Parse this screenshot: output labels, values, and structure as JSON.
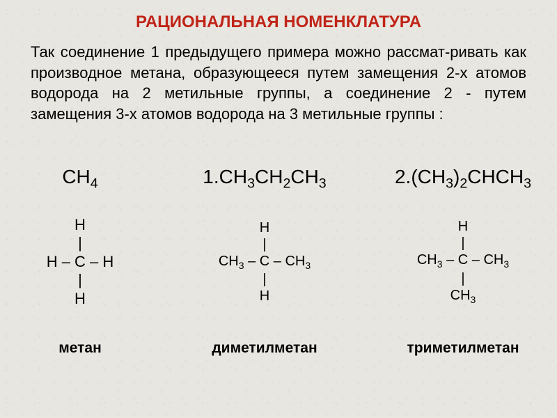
{
  "title": {
    "text": "РАЦИОНАЛЬНАЯ НОМЕНКЛАТУРА",
    "color": "#c02418",
    "fontsize": 24
  },
  "paragraph": {
    "text": "Так соединение 1 предыдущего примера можно рассмат-ривать как производное метана, образующееся путем замещения 2-х атомов водорода на 2 метильные группы, а соединение 2 - путем замещения 3-х атомов водорода на 3 метильные группы :",
    "fontsize": 22
  },
  "compounds": [
    {
      "formula_html": "CH<sub>4</sub>",
      "struct": {
        "fontsize": 22,
        "lines": [
          "H",
          "|",
          "H – C – H",
          "|",
          "H"
        ]
      },
      "name": "метан",
      "name_fontsize": 21
    },
    {
      "formula_html": "1.CH<sub>3</sub>CH<sub>2</sub>CH<sub>3</sub>",
      "struct": {
        "fontsize": 20,
        "lines": [
          "H",
          "|",
          "CH<sub>3</sub> – C – CH<sub>3</sub>",
          "|",
          "H"
        ]
      },
      "name": "диметилметан",
      "name_fontsize": 21
    },
    {
      "formula_html": "2.(CH<sub>3</sub>)<sub>2</sub>CHCH<sub>3</sub>",
      "struct": {
        "fontsize": 20,
        "lines": [
          "H",
          "|",
          "CH<sub>3</sub> – C – CH<sub>3</sub>",
          "|",
          "CH<sub>3</sub>"
        ]
      },
      "name": "триметилметан",
      "name_fontsize": 21
    }
  ],
  "colors": {
    "text": "#000000",
    "background": "#e8e6e0"
  }
}
